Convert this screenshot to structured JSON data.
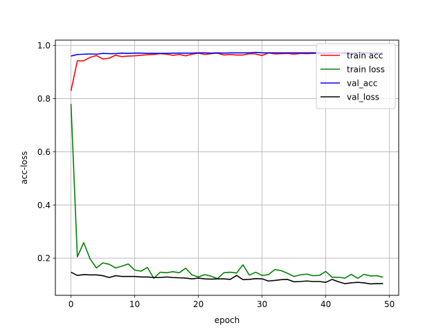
{
  "chart_data": {
    "type": "line",
    "title": "",
    "xlabel": "epoch",
    "ylabel": "acc-loss",
    "xlim": [
      -2.45,
      51.45
    ],
    "ylim": [
      0.06,
      1.02
    ],
    "xticks": [
      0,
      10,
      20,
      30,
      40,
      50
    ],
    "yticks": [
      0.2,
      0.4,
      0.6,
      0.8,
      1.0
    ],
    "xtick_labels": [
      "0",
      "10",
      "20",
      "30",
      "40",
      "50"
    ],
    "ytick_labels": [
      "0.2",
      "0.4",
      "0.6",
      "0.8",
      "1.0"
    ],
    "grid": true,
    "legend_position": "upper right",
    "series": [
      {
        "name": "train acc",
        "color": "#ff0000",
        "x": [
          0,
          1,
          2,
          3,
          4,
          5,
          6,
          7,
          8,
          9,
          10,
          11,
          12,
          13,
          14,
          15,
          16,
          17,
          18,
          19,
          20,
          21,
          22,
          23,
          24,
          25,
          26,
          27,
          28,
          29,
          30,
          31,
          32,
          33,
          34,
          35,
          36,
          37,
          38,
          39,
          40,
          41,
          42,
          43,
          44,
          45,
          46,
          47,
          48,
          49
        ],
        "values": [
          0.829,
          0.942,
          0.942,
          0.955,
          0.962,
          0.949,
          0.952,
          0.963,
          0.958,
          0.96,
          0.961,
          0.963,
          0.965,
          0.966,
          0.969,
          0.967,
          0.963,
          0.966,
          0.961,
          0.967,
          0.971,
          0.966,
          0.969,
          0.971,
          0.964,
          0.966,
          0.964,
          0.964,
          0.969,
          0.968,
          0.962,
          0.972,
          0.968,
          0.969,
          0.97,
          0.967,
          0.97,
          0.969,
          0.97,
          0.971,
          0.97,
          0.971,
          0.972,
          0.969,
          0.971,
          0.972,
          0.973,
          0.971,
          0.97,
          0.972
        ]
      },
      {
        "name": "train loss",
        "color": "#008000",
        "x": [
          0,
          1,
          2,
          3,
          4,
          5,
          6,
          7,
          8,
          9,
          10,
          11,
          12,
          13,
          14,
          15,
          16,
          17,
          18,
          19,
          20,
          21,
          22,
          23,
          24,
          25,
          26,
          27,
          28,
          29,
          30,
          31,
          32,
          33,
          34,
          35,
          36,
          37,
          38,
          39,
          40,
          41,
          42,
          43,
          44,
          45,
          46,
          47,
          48,
          49
        ],
        "values": [
          0.78,
          0.205,
          0.258,
          0.197,
          0.163,
          0.182,
          0.177,
          0.163,
          0.17,
          0.178,
          0.155,
          0.151,
          0.165,
          0.124,
          0.147,
          0.145,
          0.149,
          0.145,
          0.162,
          0.137,
          0.129,
          0.138,
          0.132,
          0.123,
          0.145,
          0.147,
          0.144,
          0.175,
          0.136,
          0.147,
          0.135,
          0.138,
          0.157,
          0.153,
          0.143,
          0.131,
          0.137,
          0.14,
          0.134,
          0.135,
          0.15,
          0.128,
          0.128,
          0.125,
          0.139,
          0.124,
          0.139,
          0.133,
          0.134,
          0.128
        ]
      },
      {
        "name": "val_acc",
        "color": "#0000ff",
        "x": [
          0,
          1,
          2,
          3,
          4,
          5,
          6,
          7,
          8,
          9,
          10,
          11,
          12,
          13,
          14,
          15,
          16,
          17,
          18,
          19,
          20,
          21,
          22,
          23,
          24,
          25,
          26,
          27,
          28,
          29,
          30,
          31,
          32,
          33,
          34,
          35,
          36,
          37,
          38,
          39,
          40,
          41,
          42,
          43,
          44,
          45,
          46,
          47,
          48,
          49
        ],
        "values": [
          0.96,
          0.966,
          0.967,
          0.968,
          0.967,
          0.97,
          0.969,
          0.969,
          0.971,
          0.97,
          0.971,
          0.971,
          0.97,
          0.97,
          0.97,
          0.97,
          0.971,
          0.971,
          0.971,
          0.971,
          0.972,
          0.972,
          0.971,
          0.972,
          0.971,
          0.972,
          0.972,
          0.972,
          0.972,
          0.974,
          0.972,
          0.972,
          0.972,
          0.972,
          0.972,
          0.972,
          0.972,
          0.972,
          0.972,
          0.972,
          0.972,
          0.972,
          0.972,
          0.972,
          0.972,
          0.972,
          0.972,
          0.972,
          0.972,
          0.972
        ]
      },
      {
        "name": "val_loss",
        "color": "#000000",
        "x": [
          0,
          1,
          2,
          3,
          4,
          5,
          6,
          7,
          8,
          9,
          10,
          11,
          12,
          13,
          14,
          15,
          16,
          17,
          18,
          19,
          20,
          21,
          22,
          23,
          24,
          25,
          26,
          27,
          28,
          29,
          30,
          31,
          32,
          33,
          34,
          35,
          36,
          37,
          38,
          39,
          40,
          41,
          42,
          43,
          44,
          45,
          46,
          47,
          48,
          49
        ],
        "values": [
          0.147,
          0.135,
          0.138,
          0.137,
          0.137,
          0.134,
          0.127,
          0.134,
          0.131,
          0.131,
          0.131,
          0.129,
          0.129,
          0.127,
          0.127,
          0.129,
          0.127,
          0.126,
          0.125,
          0.122,
          0.125,
          0.122,
          0.121,
          0.122,
          0.122,
          0.12,
          0.135,
          0.119,
          0.12,
          0.123,
          0.122,
          0.114,
          0.116,
          0.119,
          0.12,
          0.111,
          0.112,
          0.114,
          0.112,
          0.112,
          0.109,
          0.12,
          0.111,
          0.104,
          0.107,
          0.109,
          0.107,
          0.103,
          0.104,
          0.104
        ]
      }
    ]
  }
}
